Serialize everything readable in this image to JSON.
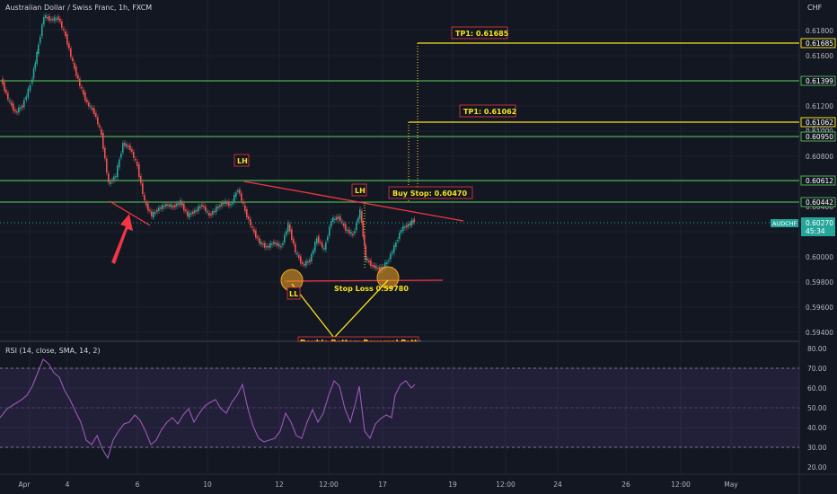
{
  "header": {
    "title": "Australian Dollar / Swiss Franc, 1h, FXCM",
    "currency": "CHF"
  },
  "price_axis": {
    "ticks": [
      "0.61800",
      "0.61600",
      "0.61400",
      "0.61200",
      "0.61000",
      "0.60800",
      "0.60600",
      "0.60400",
      "0.60200",
      "0.60000",
      "0.59800",
      "0.59600",
      "0.59400"
    ]
  },
  "rsi_axis": {
    "ticks": [
      "80.00",
      "70.00",
      "60.00",
      "50.00",
      "40.00",
      "30.00",
      "20.00"
    ]
  },
  "time_axis": {
    "ticks": [
      "Apr",
      "4",
      "6",
      "10",
      "12",
      "12:00",
      "17",
      "19",
      "12:00",
      "24",
      "26",
      "12:00",
      "May"
    ]
  },
  "levels": [
    {
      "label": "0.61685",
      "color": "#f7e11c"
    },
    {
      "label": "0.61399",
      "color": "#4caf50"
    },
    {
      "label": "0.61062",
      "color": "#f7e11c"
    },
    {
      "label": "0.60950",
      "color": "#4caf50"
    },
    {
      "label": "0.60612",
      "color": "#4caf50"
    },
    {
      "label": "0.60442",
      "color": "#4caf50"
    }
  ],
  "symbol_badge": {
    "name": "AUDCHF",
    "price": "0.60270",
    "countdown": "45:34"
  },
  "extra_label": "0.61000",
  "annotations": {
    "tp1_high": "TP1: 0.61685",
    "tp1_low": "TP1: 0.61062",
    "buy_stop": "Buy Stop: 0.60470",
    "stop_loss": "Stop Loss 0.59780",
    "lh1": "LH",
    "lh2": "LH",
    "ll": "LL",
    "pattern": "Double Bottom Reversal Pattern"
  },
  "rsi": {
    "settings": "RSI (14, close, SMA, 14, 2)"
  }
}
